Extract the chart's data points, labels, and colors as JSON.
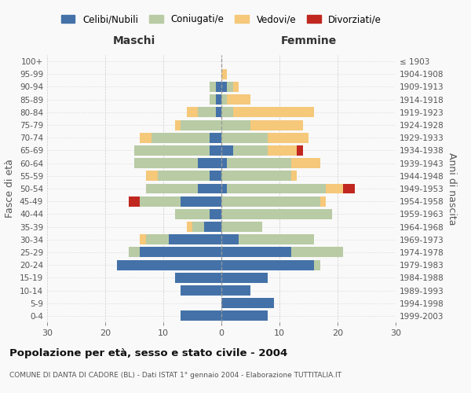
{
  "age_groups": [
    "0-4",
    "5-9",
    "10-14",
    "15-19",
    "20-24",
    "25-29",
    "30-34",
    "35-39",
    "40-44",
    "45-49",
    "50-54",
    "55-59",
    "60-64",
    "65-69",
    "70-74",
    "75-79",
    "80-84",
    "85-89",
    "90-94",
    "95-99",
    "100+"
  ],
  "birth_years": [
    "1999-2003",
    "1994-1998",
    "1989-1993",
    "1984-1988",
    "1979-1983",
    "1974-1978",
    "1969-1973",
    "1964-1968",
    "1959-1963",
    "1954-1958",
    "1949-1953",
    "1944-1948",
    "1939-1943",
    "1934-1938",
    "1929-1933",
    "1924-1928",
    "1919-1923",
    "1914-1918",
    "1909-1913",
    "1904-1908",
    "≤ 1903"
  ],
  "males": {
    "celibi": [
      7,
      0,
      7,
      8,
      18,
      14,
      9,
      3,
      2,
      7,
      4,
      2,
      4,
      2,
      2,
      0,
      1,
      1,
      1,
      0,
      0
    ],
    "coniugati": [
      0,
      0,
      0,
      0,
      0,
      2,
      4,
      2,
      6,
      7,
      9,
      9,
      11,
      13,
      10,
      7,
      3,
      1,
      1,
      0,
      0
    ],
    "vedovi": [
      0,
      0,
      0,
      0,
      0,
      0,
      1,
      1,
      0,
      0,
      0,
      2,
      0,
      0,
      2,
      1,
      2,
      0,
      0,
      0,
      0
    ],
    "divorziati": [
      0,
      0,
      0,
      0,
      0,
      0,
      0,
      0,
      0,
      2,
      0,
      0,
      0,
      0,
      0,
      0,
      0,
      0,
      0,
      0,
      0
    ]
  },
  "females": {
    "nubili": [
      8,
      9,
      5,
      8,
      16,
      12,
      3,
      0,
      0,
      0,
      1,
      0,
      1,
      2,
      0,
      0,
      0,
      0,
      1,
      0,
      0
    ],
    "coniugate": [
      0,
      0,
      0,
      0,
      1,
      9,
      13,
      7,
      19,
      17,
      17,
      12,
      11,
      6,
      8,
      5,
      2,
      1,
      1,
      0,
      0
    ],
    "vedove": [
      0,
      0,
      0,
      0,
      0,
      0,
      0,
      0,
      0,
      1,
      3,
      1,
      5,
      5,
      7,
      9,
      14,
      4,
      1,
      1,
      0
    ],
    "divorziate": [
      0,
      0,
      0,
      0,
      0,
      0,
      0,
      0,
      0,
      0,
      2,
      0,
      0,
      1,
      0,
      0,
      0,
      0,
      0,
      0,
      0
    ]
  },
  "colors": {
    "celibi": "#4472a8",
    "coniugati": "#b8cba4",
    "vedovi": "#f5c87a",
    "divorziati": "#c0271f"
  },
  "xlim": 30,
  "title": "Popolazione per età, sesso e stato civile - 2004",
  "subtitle": "COMUNE DI DANTA DI CADORE (BL) - Dati ISTAT 1° gennaio 2004 - Elaborazione TUTTITALIA.IT",
  "ylabel_left": "Fasce di età",
  "ylabel_right": "Anni di nascita",
  "label_maschi": "Maschi",
  "label_femmine": "Femmine",
  "legend_labels": [
    "Celibi/Nubili",
    "Coniugati/e",
    "Vedovi/e",
    "Divorziati/e"
  ],
  "background_color": "#f9f9f9"
}
